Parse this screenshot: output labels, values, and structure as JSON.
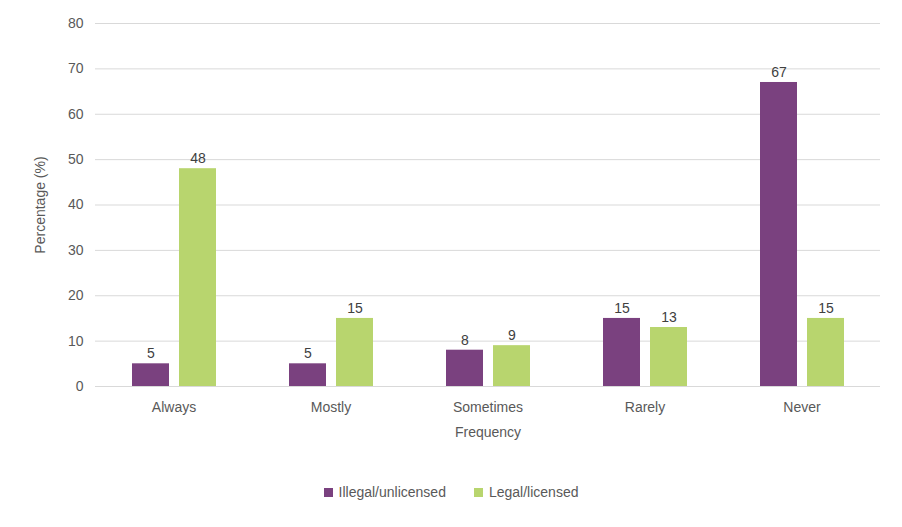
{
  "chart_data": {
    "type": "bar",
    "categories": [
      "Always",
      "Mostly",
      "Sometimes",
      "Rarely",
      "Never"
    ],
    "series": [
      {
        "name": "Illegal/unlicensed",
        "color": "#7a417f",
        "values": [
          5,
          5,
          8,
          15,
          67
        ]
      },
      {
        "name": "Legal/licensed",
        "color": "#b8d56e",
        "values": [
          48,
          15,
          9,
          13,
          15
        ]
      }
    ],
    "x_label": "Frequency",
    "y_label": "Percentage (%)",
    "ylim": [
      0,
      80
    ],
    "yticks": [
      0,
      10,
      20,
      30,
      40,
      50,
      60,
      70,
      80
    ],
    "grid": true,
    "data_labels": true,
    "legend": "bottom"
  }
}
